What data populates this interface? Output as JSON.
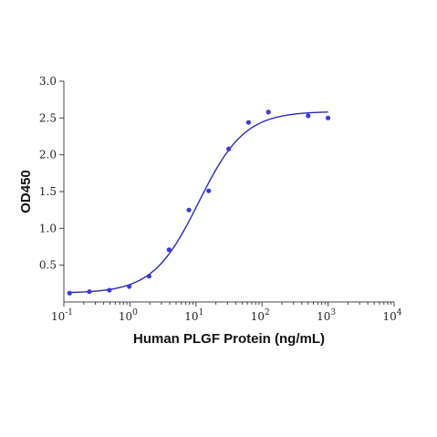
{
  "chart_data": {
    "type": "scatter",
    "title": "",
    "xlabel": "Human PLGF Protein (ng/mL)",
    "ylabel": "OD450",
    "x_scale": "log",
    "xlim": [
      0.1,
      10000
    ],
    "ylim": [
      0,
      3.0
    ],
    "x_ticks": [
      {
        "value": 0.1,
        "base": "10",
        "exp": "-1"
      },
      {
        "value": 1,
        "base": "10",
        "exp": "0"
      },
      {
        "value": 10,
        "base": "10",
        "exp": "1"
      },
      {
        "value": 100,
        "base": "10",
        "exp": "2"
      },
      {
        "value": 1000,
        "base": "10",
        "exp": "3"
      },
      {
        "value": 10000,
        "base": "10",
        "exp": "4"
      }
    ],
    "y_ticks": [
      {
        "value": 0.5,
        "label": "0.5"
      },
      {
        "value": 1.0,
        "label": "1.0"
      },
      {
        "value": 1.5,
        "label": "1.5"
      },
      {
        "value": 2.0,
        "label": "2.0"
      },
      {
        "value": 2.5,
        "label": "2.5"
      },
      {
        "value": 3.0,
        "label": "3.0"
      }
    ],
    "grid": false,
    "points": [
      {
        "x": 0.122,
        "y": 0.12
      },
      {
        "x": 0.244,
        "y": 0.14
      },
      {
        "x": 0.488,
        "y": 0.16
      },
      {
        "x": 0.977,
        "y": 0.21
      },
      {
        "x": 1.95,
        "y": 0.35
      },
      {
        "x": 3.91,
        "y": 0.71
      },
      {
        "x": 7.81,
        "y": 1.25
      },
      {
        "x": 15.6,
        "y": 1.51
      },
      {
        "x": 31.3,
        "y": 2.08
      },
      {
        "x": 62.5,
        "y": 2.44
      },
      {
        "x": 125,
        "y": 2.58
      },
      {
        "x": 500,
        "y": 2.53
      },
      {
        "x": 1000,
        "y": 2.5
      }
    ],
    "fit_curve": {
      "model": "4PL",
      "bottom": 0.12,
      "top": 2.59,
      "ec50": 11,
      "hill": 1.25,
      "x_range": [
        0.122,
        1000
      ]
    },
    "colors": {
      "points": "#3a3ad6",
      "curve": "#2b2bb8",
      "axis": "#444444"
    }
  }
}
